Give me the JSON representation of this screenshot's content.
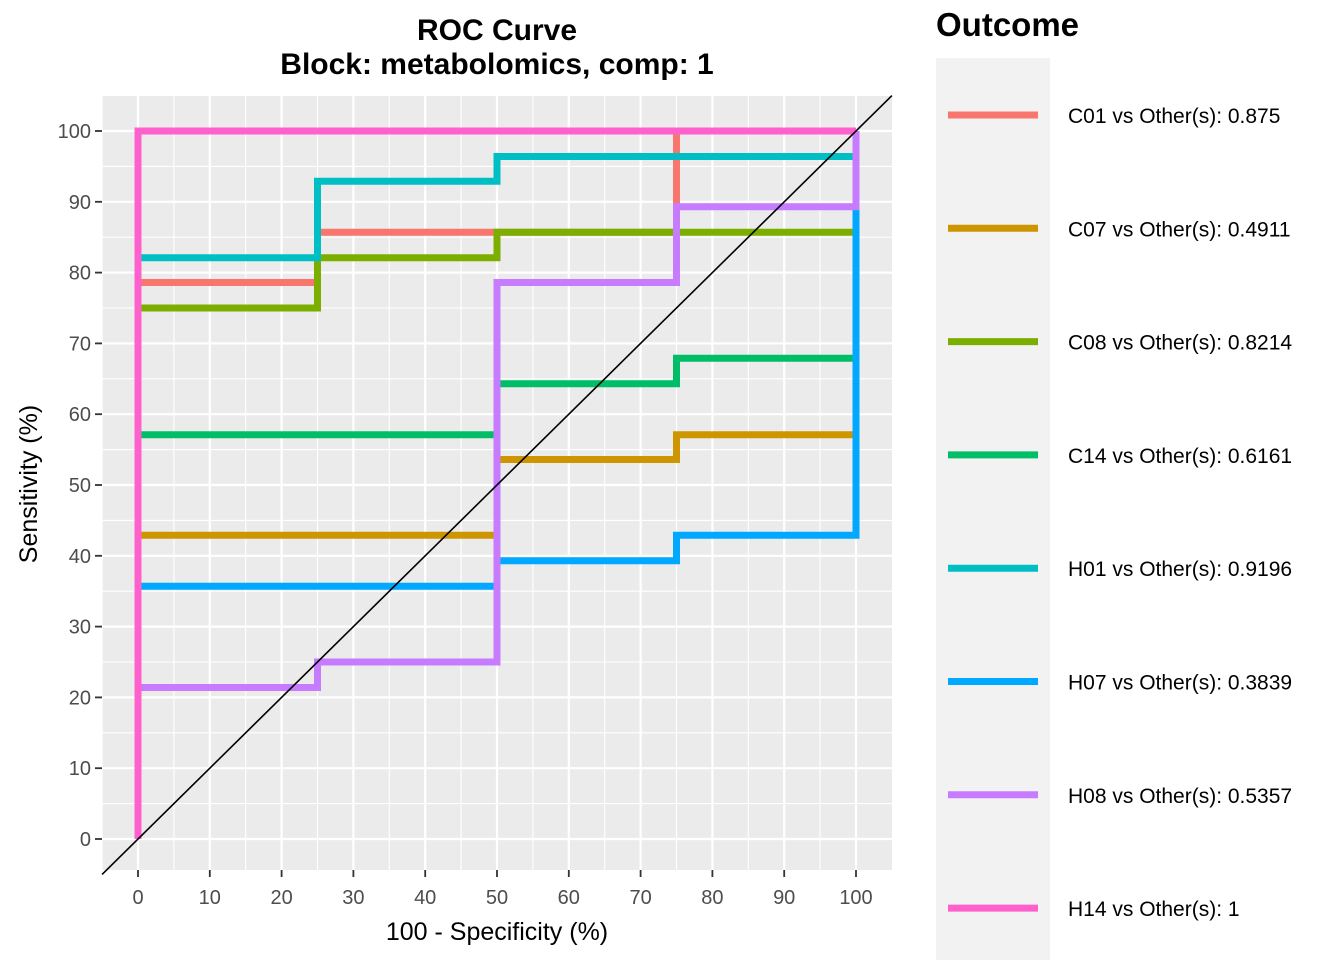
{
  "chart_data": {
    "type": "line",
    "title": "ROC Curve",
    "subtitle": "Block: metabolomics, comp: 1",
    "xlabel": "100 - Specificity (%)",
    "ylabel": "Sensitivity (%)",
    "xlim": [
      -5,
      105
    ],
    "ylim": [
      -5,
      105
    ],
    "x_ticks": [
      0,
      10,
      20,
      30,
      40,
      50,
      60,
      70,
      80,
      90,
      100
    ],
    "y_ticks": [
      0,
      10,
      20,
      30,
      40,
      50,
      60,
      70,
      80,
      90,
      100
    ],
    "grid": true,
    "background": "#ebebeb",
    "diagonal_reference": true,
    "legend": {
      "title": "Outcome",
      "placement": "right"
    },
    "series": [
      {
        "name": "C01 vs Other(s): 0.875",
        "color": "#F8766D",
        "x": [
          0,
          0,
          25,
          25,
          75,
          75,
          100
        ],
        "y": [
          0,
          78.6,
          78.6,
          85.7,
          85.7,
          100,
          100
        ]
      },
      {
        "name": "C07 vs Other(s): 0.4911",
        "color": "#CD9600",
        "x": [
          0,
          0,
          50,
          50,
          75,
          75,
          100
        ],
        "y": [
          0,
          42.9,
          42.9,
          53.6,
          53.6,
          57.1,
          57.1
        ]
      },
      {
        "name": "C08 vs Other(s): 0.8214",
        "color": "#7CAE00",
        "x": [
          0,
          0,
          25,
          25,
          50,
          50,
          100
        ],
        "y": [
          0,
          75,
          75,
          82.1,
          82.1,
          85.7,
          85.7
        ]
      },
      {
        "name": "C14 vs Other(s): 0.6161",
        "color": "#00BE67",
        "x": [
          0,
          0,
          50,
          50,
          75,
          75,
          100
        ],
        "y": [
          0,
          57.1,
          57.1,
          64.3,
          64.3,
          67.9,
          67.9
        ]
      },
      {
        "name": "H01 vs Other(s): 0.9196",
        "color": "#00BFC4",
        "x": [
          0,
          0,
          25,
          25,
          50,
          50,
          100
        ],
        "y": [
          0,
          82.1,
          82.1,
          92.9,
          92.9,
          96.4,
          96.4
        ]
      },
      {
        "name": "H07 vs Other(s): 0.3839",
        "color": "#00A9FF",
        "x": [
          0,
          0,
          50,
          50,
          75,
          75,
          100,
          100
        ],
        "y": [
          0,
          35.7,
          35.7,
          39.3,
          39.3,
          42.9,
          42.9,
          89.3
        ]
      },
      {
        "name": "H08 vs Other(s): 0.5357",
        "color": "#C77CFF",
        "x": [
          0,
          0,
          25,
          25,
          50,
          50,
          75,
          75,
          100,
          100
        ],
        "y": [
          0,
          21.4,
          21.4,
          25,
          25,
          78.6,
          78.6,
          89.3,
          89.3,
          100
        ]
      },
      {
        "name": "H14 vs Other(s): 1",
        "color": "#FF61CC",
        "x": [
          0,
          0,
          100
        ],
        "y": [
          0,
          100,
          100
        ]
      }
    ]
  }
}
